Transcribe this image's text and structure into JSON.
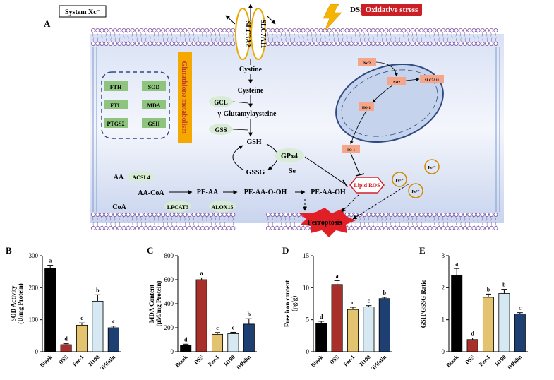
{
  "diagram": {
    "panel_letter": "A",
    "system_label": "System Xc⁻",
    "slc3a2": "SLC3A2",
    "slc7a11": "SLC7A11",
    "dss": "DSS",
    "oxidative_stress": "Oxidative stress",
    "glutathione_metabolism": "Glutathione metabolism",
    "metabolites": [
      "FTH",
      "SOD",
      "FTL",
      "MDA",
      "PTGS2",
      "GSH"
    ],
    "cystine": "Cystine",
    "cysteine": "Cysteine",
    "gcl": "GCL",
    "glutamylcysteine": "γ-Glutamylaysteine",
    "gss": "GSS",
    "gsh": "GSH",
    "gpx4": "GPx4",
    "gssg": "GSSG",
    "se": "Se",
    "aa": "AA",
    "acsl4": "ACSL4",
    "aa_coa": "AA-CoA",
    "coa": "CoA",
    "pe_aa": "PE-AA",
    "lpcat3": "LPCAT3",
    "pe_aa_o_oh": "PE-AA-O-OH",
    "alox15": "ALOX15",
    "pe_aa_oh": "PE-AA-OH",
    "ferroptosis": "Ferroptosis",
    "lipid_ros": "Lipid ROS",
    "iron": "Fe²⁺",
    "nrf2": "Nrf2",
    "ho1": "HO-1",
    "colors": {
      "tag_green": "#8fc47e",
      "enzyme_green": "#d8ebd5",
      "membrane": "#7a4fa0",
      "accent_red": "#c91f25",
      "accent_yellow": "#f5a800",
      "iron_ring": "#d18a00"
    }
  },
  "chart_data": [
    {
      "panel": "B",
      "type": "bar",
      "ylabel": "SOD Activity (U/mg Protein)",
      "ylim": [
        0,
        300
      ],
      "yticks": [
        0,
        100,
        200,
        300
      ],
      "categories": [
        "Blank",
        "DSS",
        "Fer-1",
        "H100",
        "Trifolin"
      ],
      "values": [
        260,
        22,
        83,
        158,
        75
      ],
      "errors": [
        10,
        3,
        7,
        20,
        5
      ],
      "letters": [
        "a",
        "d",
        "c",
        "b",
        "c"
      ],
      "colors": [
        "#000000",
        "#a8302a",
        "#e3c270",
        "#d6e8f2",
        "#1e3f72"
      ]
    },
    {
      "panel": "C",
      "type": "bar",
      "ylabel": "MDA Content (μM/mg Protein)",
      "ylim": [
        0,
        800
      ],
      "yticks": [
        0,
        200,
        400,
        600,
        800
      ],
      "categories": [
        "Blank",
        "DSS",
        "Fer-1",
        "H100",
        "Trifolin"
      ],
      "values": [
        55,
        600,
        145,
        150,
        230
      ],
      "errors": [
        8,
        15,
        15,
        12,
        45
      ],
      "letters": [
        "d",
        "a",
        "c",
        "c",
        "b"
      ],
      "colors": [
        "#000000",
        "#a8302a",
        "#e3c270",
        "#d6e8f2",
        "#1e3f72"
      ]
    },
    {
      "panel": "D",
      "type": "bar",
      "ylabel": "Free iron content (μg/g)",
      "ylim": [
        0,
        15
      ],
      "yticks": [
        0,
        5,
        10,
        15
      ],
      "categories": [
        "Blank",
        "DSS",
        "Fer-1",
        "H100",
        "Trifolin"
      ],
      "values": [
        4.4,
        10.5,
        6.6,
        7.0,
        8.3
      ],
      "errors": [
        0.35,
        0.6,
        0.35,
        0.2,
        0.2
      ],
      "letters": [
        "d",
        "a",
        "c",
        "c",
        "b"
      ],
      "colors": [
        "#000000",
        "#a8302a",
        "#e3c270",
        "#d6e8f2",
        "#1e3f72"
      ]
    },
    {
      "panel": "E",
      "type": "bar",
      "ylabel": "GSH/GSSG Ratio",
      "ylim": [
        0,
        3
      ],
      "yticks": [
        0,
        1,
        2,
        3
      ],
      "categories": [
        "Blank",
        "DSS",
        "Fer-1",
        "H100",
        "Trifolin"
      ],
      "values": [
        2.38,
        0.38,
        1.7,
        1.82,
        1.18
      ],
      "errors": [
        0.22,
        0.05,
        0.1,
        0.13,
        0.04
      ],
      "letters": [
        "a",
        "d",
        "b",
        "b",
        "c"
      ],
      "colors": [
        "#000000",
        "#a8302a",
        "#e3c270",
        "#d6e8f2",
        "#1e3f72"
      ]
    }
  ]
}
